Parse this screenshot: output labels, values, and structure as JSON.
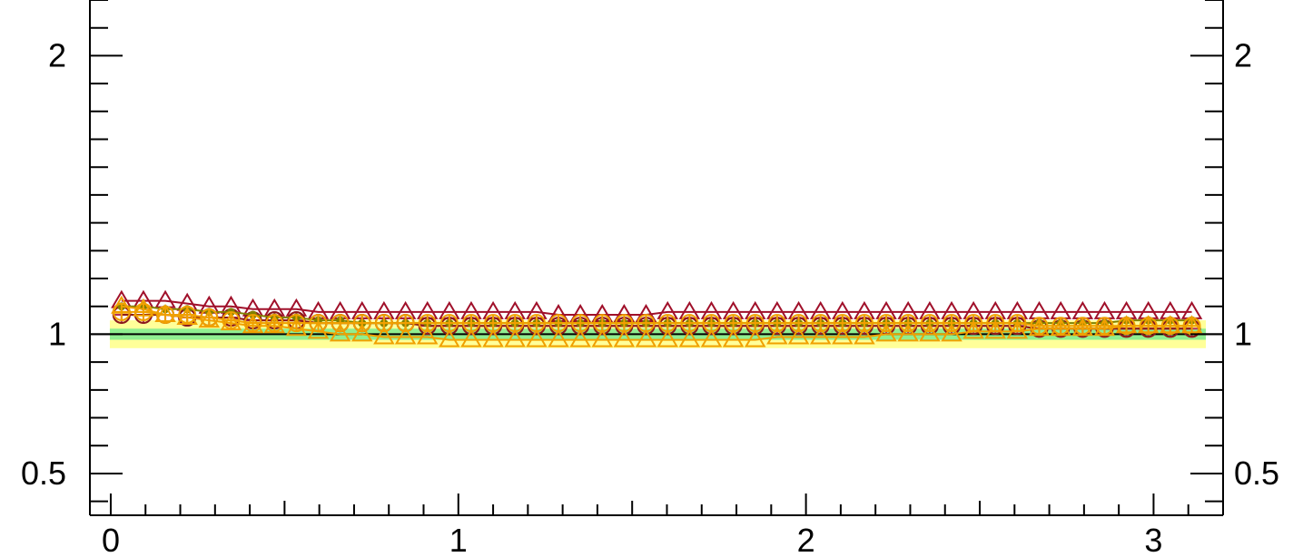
{
  "chart_data": {
    "type": "line",
    "title": "",
    "xlabel": "",
    "ylabel": "",
    "xlim": [
      -0.06,
      3.2
    ],
    "ylim": [
      0.35,
      2.2
    ],
    "x_ticks": [
      {
        "value": 0,
        "label": "0"
      },
      {
        "value": 1,
        "label": "1"
      },
      {
        "value": 2,
        "label": "2"
      },
      {
        "value": 3,
        "label": "3"
      }
    ],
    "y_ticks": [
      {
        "value": 0.5,
        "label": "0.5"
      },
      {
        "value": 1,
        "label": "1"
      },
      {
        "value": 2,
        "label": "2"
      }
    ],
    "reference_line": 1.0,
    "bands": [
      {
        "low": 0.95,
        "high": 1.05,
        "color": "#ffff99"
      },
      {
        "low": 0.98,
        "high": 1.02,
        "color": "#90ee90"
      }
    ],
    "x": [
      0.031,
      0.094,
      0.157,
      0.22,
      0.283,
      0.346,
      0.409,
      0.471,
      0.534,
      0.597,
      0.66,
      0.723,
      0.786,
      0.848,
      0.911,
      0.974,
      1.037,
      1.1,
      1.163,
      1.225,
      1.288,
      1.351,
      1.414,
      1.477,
      1.54,
      1.602,
      1.665,
      1.728,
      1.791,
      1.854,
      1.917,
      1.979,
      2.042,
      2.105,
      2.168,
      2.231,
      2.294,
      2.356,
      2.419,
      2.482,
      2.545,
      2.608,
      2.671,
      2.733,
      2.796,
      2.859,
      2.922,
      2.985,
      3.048,
      3.11
    ],
    "series": [
      {
        "marker": "triangle",
        "color": "#a0102a",
        "values": [
          1.12,
          1.12,
          1.12,
          1.11,
          1.1,
          1.1,
          1.09,
          1.09,
          1.09,
          1.08,
          1.08,
          1.08,
          1.08,
          1.08,
          1.08,
          1.08,
          1.08,
          1.08,
          1.08,
          1.08,
          1.07,
          1.07,
          1.07,
          1.07,
          1.07,
          1.08,
          1.08,
          1.08,
          1.08,
          1.08,
          1.08,
          1.08,
          1.08,
          1.08,
          1.08,
          1.08,
          1.08,
          1.08,
          1.08,
          1.08,
          1.08,
          1.08,
          1.08,
          1.08,
          1.08,
          1.08,
          1.08,
          1.08,
          1.08,
          1.08
        ]
      },
      {
        "marker": "open-circle-cross",
        "color": "#b03060",
        "values": [
          1.07,
          1.07,
          1.07,
          1.06,
          1.06,
          1.06,
          1.05,
          1.05,
          1.05,
          1.04,
          1.04,
          1.04,
          1.04,
          1.04,
          1.03,
          1.03,
          1.03,
          1.03,
          1.03,
          1.03,
          1.03,
          1.03,
          1.03,
          1.03,
          1.03,
          1.03,
          1.03,
          1.03,
          1.03,
          1.03,
          1.03,
          1.03,
          1.03,
          1.03,
          1.03,
          1.03,
          1.03,
          1.03,
          1.03,
          1.03,
          1.03,
          1.03,
          1.02,
          1.02,
          1.02,
          1.02,
          1.02,
          1.02,
          1.02,
          1.02
        ]
      },
      {
        "marker": "open-circle",
        "color": "#8b1a1a",
        "values": [
          1.07,
          1.07,
          1.07,
          1.06,
          1.06,
          1.06,
          1.05,
          1.05,
          1.05,
          1.04,
          1.04,
          1.04,
          1.04,
          1.04,
          1.03,
          1.03,
          1.03,
          1.03,
          1.03,
          1.03,
          1.03,
          1.03,
          1.03,
          1.03,
          1.03,
          1.03,
          1.03,
          1.03,
          1.03,
          1.03,
          1.03,
          1.03,
          1.03,
          1.03,
          1.03,
          1.03,
          1.03,
          1.03,
          1.03,
          1.03,
          1.03,
          1.03,
          1.02,
          1.02,
          1.02,
          1.02,
          1.02,
          1.02,
          1.02,
          1.02
        ]
      },
      {
        "marker": "dot",
        "color": "#808000",
        "values": [
          1.1,
          1.1,
          1.09,
          1.09,
          1.08,
          1.08,
          1.07,
          1.06,
          1.06,
          1.05,
          1.05,
          1.04,
          1.04,
          1.04,
          1.04,
          1.04,
          1.04,
          1.04,
          1.04,
          1.04,
          1.04,
          1.04,
          1.04,
          1.04,
          1.04,
          1.04,
          1.04,
          1.04,
          1.04,
          1.04,
          1.04,
          1.04,
          1.04,
          1.04,
          1.04,
          1.04,
          1.04,
          1.04,
          1.04,
          1.04,
          1.04,
          1.04,
          1.04,
          1.04,
          1.04,
          1.04,
          1.05,
          1.05,
          1.05,
          1.05
        ]
      },
      {
        "marker": "triangle",
        "color": "#f0a000",
        "values": [
          1.1,
          1.09,
          1.07,
          1.06,
          1.05,
          1.04,
          1.03,
          1.03,
          1.02,
          1.01,
          1.0,
          1.0,
          0.99,
          0.99,
          0.99,
          0.98,
          0.98,
          0.98,
          0.98,
          0.98,
          0.98,
          0.98,
          0.98,
          0.98,
          0.98,
          0.98,
          0.98,
          0.98,
          0.98,
          0.98,
          0.99,
          0.99,
          0.99,
          0.99,
          0.99,
          1.0,
          1.0,
          1.0,
          1.0,
          1.01,
          1.01,
          1.01,
          1.02,
          1.02,
          1.02,
          1.02,
          1.03,
          1.03,
          1.03,
          1.03
        ]
      },
      {
        "marker": "open-circle-cross",
        "color": "#f0a000",
        "values": [
          1.08,
          1.08,
          1.07,
          1.07,
          1.06,
          1.05,
          1.04,
          1.04,
          1.04,
          1.04,
          1.04,
          1.04,
          1.04,
          1.04,
          1.04,
          1.04,
          1.04,
          1.04,
          1.04,
          1.04,
          1.04,
          1.04,
          1.04,
          1.04,
          1.04,
          1.04,
          1.04,
          1.04,
          1.04,
          1.04,
          1.04,
          1.04,
          1.04,
          1.04,
          1.04,
          1.04,
          1.04,
          1.04,
          1.04,
          1.04,
          1.04,
          1.04,
          1.03,
          1.03,
          1.03,
          1.03,
          1.03,
          1.03,
          1.03,
          1.03
        ]
      }
    ]
  }
}
